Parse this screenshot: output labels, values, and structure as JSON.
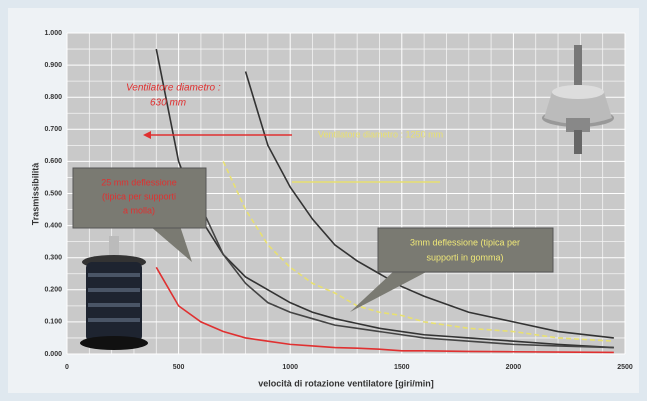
{
  "chart_data": {
    "type": "line",
    "y_label": "Trasmissibilità",
    "x_label": "velocità di rotazione ventilatore [giri/min]",
    "x": [
      400,
      500,
      600,
      700,
      800,
      900,
      1000,
      1100,
      1200,
      1300,
      1400,
      1500,
      1600,
      1800,
      2000,
      2200,
      2450
    ],
    "series": [
      {
        "color": "#333333",
        "values": [
          0.95,
          0.6,
          0.42,
          0.31,
          0.24,
          0.2,
          0.16,
          0.13,
          0.11,
          0.095,
          0.08,
          0.07,
          0.06,
          0.05,
          0.04,
          0.03,
          0.02
        ]
      },
      {
        "color": "#333333",
        "values": [
          null,
          null,
          null,
          null,
          0.88,
          0.65,
          0.52,
          0.42,
          0.34,
          0.29,
          0.25,
          0.21,
          0.18,
          0.13,
          0.1,
          0.07,
          0.05
        ]
      },
      {
        "color": "#e8e070",
        "style": "dashed",
        "values": [
          null,
          null,
          null,
          0.6,
          0.45,
          0.34,
          0.27,
          0.22,
          0.19,
          0.15,
          0.13,
          0.12,
          0.1,
          0.08,
          0.07,
          0.05,
          0.04
        ]
      },
      {
        "color": "#444444",
        "values": [
          null,
          null,
          0.46,
          0.31,
          0.22,
          0.16,
          0.13,
          0.11,
          0.09,
          0.08,
          0.07,
          0.06,
          0.05,
          0.04,
          0.03,
          0.025,
          0.02
        ]
      },
      {
        "color": "#e03030",
        "values": [
          0.27,
          0.15,
          0.1,
          0.07,
          0.05,
          0.04,
          0.03,
          0.025,
          0.02,
          0.018,
          0.015,
          0.01,
          0.01,
          0.008,
          0.007,
          0.006,
          0.005
        ]
      }
    ],
    "xlim": [
      0,
      2500
    ],
    "ylim": [
      0,
      1
    ],
    "xticks": [
      0,
      500,
      1000,
      1500,
      2000,
      2500
    ],
    "yticks": [
      {
        "value": 0,
        "label": "0.000"
      },
      {
        "value": 0.1,
        "label": "0.100"
      },
      {
        "value": 0.2,
        "label": "0.200"
      },
      {
        "value": 0.3,
        "label": "0.300"
      },
      {
        "value": 0.4,
        "label": "0.400"
      },
      {
        "value": 0.5,
        "label": "0.500"
      },
      {
        "value": 0.6,
        "label": "0.600"
      },
      {
        "value": 0.7,
        "label": "0.700"
      },
      {
        "value": 0.8,
        "label": "0.800"
      },
      {
        "value": 0.9,
        "label": "0.900"
      },
      {
        "value": 1,
        "label": "1.000"
      }
    ],
    "xminorticks": [
      100,
      200,
      300,
      400,
      600,
      700,
      800,
      900,
      1100,
      1200,
      1300,
      1400,
      1600,
      1700,
      1800,
      1900,
      2100,
      2200,
      2300,
      2400
    ],
    "yminorticks": [
      0.05,
      0.15,
      0.25,
      0.35,
      0.45,
      0.55,
      0.65,
      0.75,
      0.85,
      0.95
    ],
    "grid": true,
    "annotations": {
      "fan_small": [
        "Ventilatore diametro :",
        "630 mm"
      ],
      "fan_large": [
        "Ventilatore diametro : 1250 mm"
      ],
      "spring_box": [
        "25 mm deflessione",
        "(tipica per supporti",
        "a molla)"
      ],
      "rubber_box": [
        "3mm deflessione (tipica per",
        "supporti in gomma)"
      ]
    }
  }
}
